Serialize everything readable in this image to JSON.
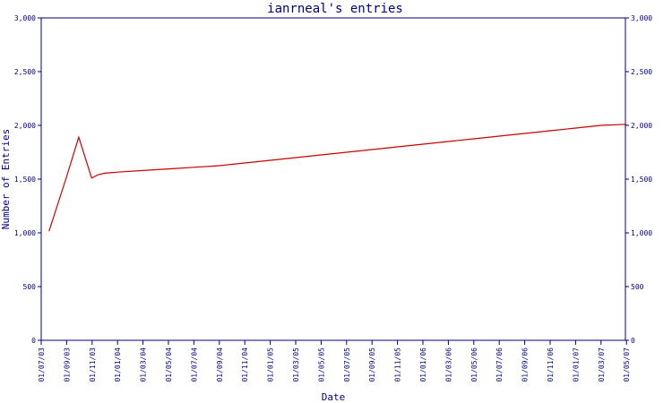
{
  "chart_data": {
    "type": "line",
    "title": "ianrneal's entries",
    "xlabel": "Date",
    "ylabel": "Number of Entries",
    "ylim": [
      0,
      3000
    ],
    "y_ticks": [
      0,
      500,
      1000,
      1500,
      2000,
      2500,
      3000
    ],
    "y_tick_labels": [
      "0",
      "500",
      "1,000",
      "1,500",
      "2,000",
      "2,500",
      "3,000"
    ],
    "x_tick_labels": [
      "01/07/03",
      "01/09/03",
      "01/11/03",
      "01/01/04",
      "01/03/04",
      "01/05/04",
      "01/07/04",
      "01/09/04",
      "01/11/04",
      "01/01/05",
      "01/03/05",
      "01/05/05",
      "01/07/05",
      "01/09/05",
      "01/11/05",
      "01/01/06",
      "01/03/06",
      "01/05/06",
      "01/07/06",
      "01/09/06",
      "01/11/06",
      "01/01/07",
      "01/03/07",
      "01/05/07"
    ],
    "grid": false,
    "legend": "none",
    "series": [
      {
        "color": "#cc0000",
        "x": [
          "2003-07-20",
          "2003-08-30",
          "2003-09-30",
          "2003-10-31",
          "2003-11-15",
          "2003-12-01",
          "2004-01-01",
          "2004-03-01",
          "2004-05-01",
          "2004-07-01",
          "2004-09-01",
          "2004-11-01",
          "2005-01-01",
          "2005-03-01",
          "2005-05-01",
          "2005-07-01",
          "2005-09-01",
          "2005-11-01",
          "2006-01-01",
          "2006-03-01",
          "2006-05-01",
          "2006-07-01",
          "2006-09-01",
          "2006-11-01",
          "2007-01-01",
          "2007-03-01",
          "2007-05-01"
        ],
        "values": [
          1015,
          1500,
          1890,
          1510,
          1540,
          1555,
          1565,
          1580,
          1595,
          1610,
          1625,
          1650,
          1675,
          1700,
          1725,
          1750,
          1775,
          1800,
          1825,
          1850,
          1875,
          1900,
          1925,
          1950,
          1975,
          2000,
          2010
        ]
      }
    ]
  }
}
